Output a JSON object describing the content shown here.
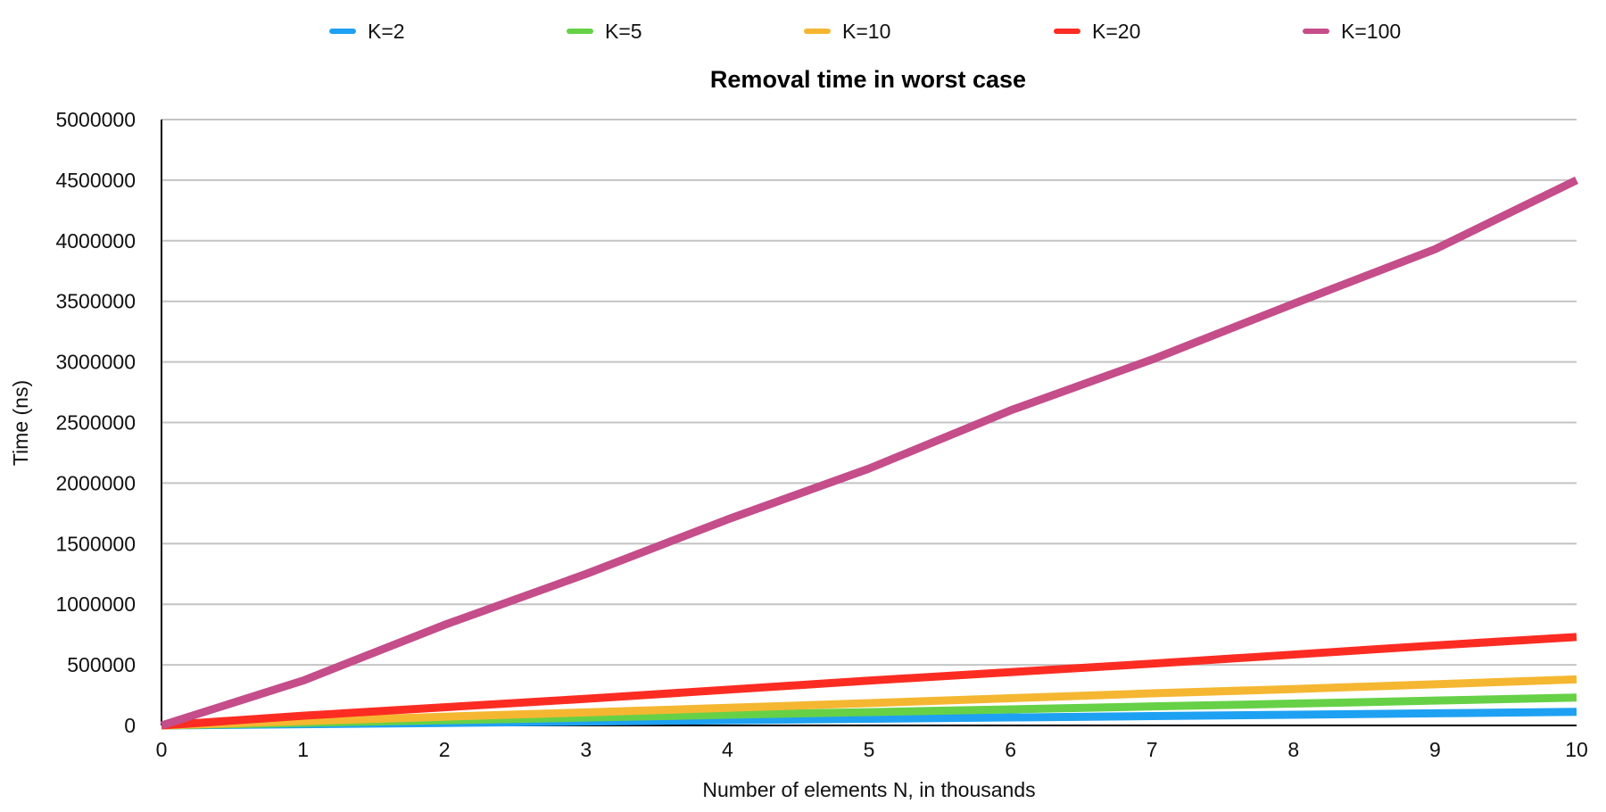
{
  "chart_data": {
    "type": "line",
    "title": "Removal time in worst case",
    "xlabel": "Number of elements N, in thousands",
    "ylabel": "Time (ns)",
    "x": [
      0,
      1,
      2,
      3,
      4,
      5,
      6,
      7,
      8,
      9,
      10
    ],
    "xlim": [
      0,
      10
    ],
    "ylim": [
      0,
      5000000
    ],
    "yticks": [
      0,
      500000,
      1000000,
      1500000,
      2000000,
      2500000,
      3000000,
      3500000,
      4000000,
      4500000,
      5000000
    ],
    "grid": true,
    "legend_position": "top",
    "series": [
      {
        "name": "K=2",
        "color": "#1ea1f2",
        "values": [
          0,
          10000,
          20000,
          32000,
          43000,
          55000,
          66000,
          77000,
          88000,
          100000,
          112000
        ]
      },
      {
        "name": "K=5",
        "color": "#66d147",
        "values": [
          0,
          21000,
          43000,
          65000,
          88000,
          110000,
          133000,
          157000,
          180000,
          205000,
          230000
        ]
      },
      {
        "name": "K=10",
        "color": "#f5b731",
        "values": [
          0,
          36000,
          72000,
          108000,
          145000,
          184000,
          225000,
          265000,
          300000,
          340000,
          380000
        ]
      },
      {
        "name": "K=20",
        "color": "#fc2c22",
        "values": [
          0,
          80000,
          150000,
          220000,
          295000,
          370000,
          440000,
          510000,
          585000,
          660000,
          730000
        ]
      },
      {
        "name": "K=100",
        "color": "#c44d8a",
        "values": [
          0,
          370000,
          830000,
          1250000,
          1700000,
          2120000,
          2600000,
          3020000,
          3480000,
          3930000,
          4500000
        ]
      }
    ]
  }
}
